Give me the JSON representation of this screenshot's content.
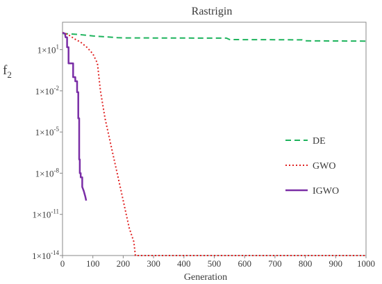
{
  "chart_data": {
    "type": "line",
    "title": "Rastrigin",
    "xlabel": "Generation",
    "ylabel": "f",
    "ylabel_sub": "2",
    "xlim": [
      0,
      1000
    ],
    "x_ticks": [
      0,
      100,
      200,
      300,
      400,
      500,
      600,
      700,
      800,
      900,
      1000
    ],
    "y_scale": "log",
    "ylim_exponent": [
      -14,
      3
    ],
    "y_ticks": [
      {
        "mantissa": "1×10",
        "exponent": "-14",
        "log10": -14
      },
      {
        "mantissa": "1×10",
        "exponent": "-11",
        "log10": -11
      },
      {
        "mantissa": "1×10",
        "exponent": "-8",
        "log10": -8
      },
      {
        "mantissa": "1×10",
        "exponent": "-5",
        "log10": -5
      },
      {
        "mantissa": "1×10",
        "exponent": "-2",
        "log10": -2
      },
      {
        "mantissa": "1×10",
        "exponent": "1",
        "log10": 1
      }
    ],
    "grid": false,
    "legend_position": "right",
    "series": [
      {
        "name": "DE",
        "color": "#1db35c",
        "style": "dashed",
        "x": [
          0,
          50,
          100,
          150,
          180,
          200,
          300,
          400,
          540,
          550,
          600,
          700,
          790,
          800,
          900,
          1000
        ],
        "y": [
          150.0,
          130.0,
          100.0,
          85.0,
          75.0,
          72.0,
          71.0,
          70.0,
          69.0,
          55.0,
          54.0,
          53.0,
          52.0,
          44.0,
          43.0,
          42.0
        ]
      },
      {
        "name": "GWO",
        "color": "#e02222",
        "style": "dotted",
        "x": [
          0,
          20,
          40,
          60,
          80,
          100,
          115,
          125,
          140,
          160,
          180,
          200,
          220,
          235,
          240,
          300,
          400,
          500,
          600,
          700,
          800,
          900,
          1000
        ],
        "y": [
          180.0,
          120.0,
          60.0,
          35.0,
          15.0,
          5,
          1,
          0.01,
          0.0001,
          1e-06,
          1e-08,
          1e-10,
          1e-12,
          1e-13,
          1e-14,
          1e-14,
          1e-14,
          1e-14,
          1e-14,
          1e-14,
          1e-14,
          1e-14,
          1e-14
        ]
      },
      {
        "name": "IGWO",
        "color": "#7a2ea6",
        "style": "solid",
        "x": [
          0,
          8,
          10,
          15,
          15,
          20,
          20,
          35,
          35,
          42,
          42,
          48,
          48,
          52,
          52,
          55,
          55,
          57,
          57,
          60,
          60,
          65,
          65,
          70,
          75,
          78
        ],
        "y": [
          170.0,
          150.0,
          80.0,
          80.0,
          15.0,
          15.0,
          1,
          1,
          0.1,
          0.1,
          0.05,
          0.05,
          0.008,
          0.008,
          0.0001,
          0.0001,
          1e-07,
          1e-07,
          1e-08,
          1e-08,
          5e-09,
          5e-09,
          1e-09,
          5e-10,
          2e-10,
          1e-10
        ]
      }
    ]
  }
}
